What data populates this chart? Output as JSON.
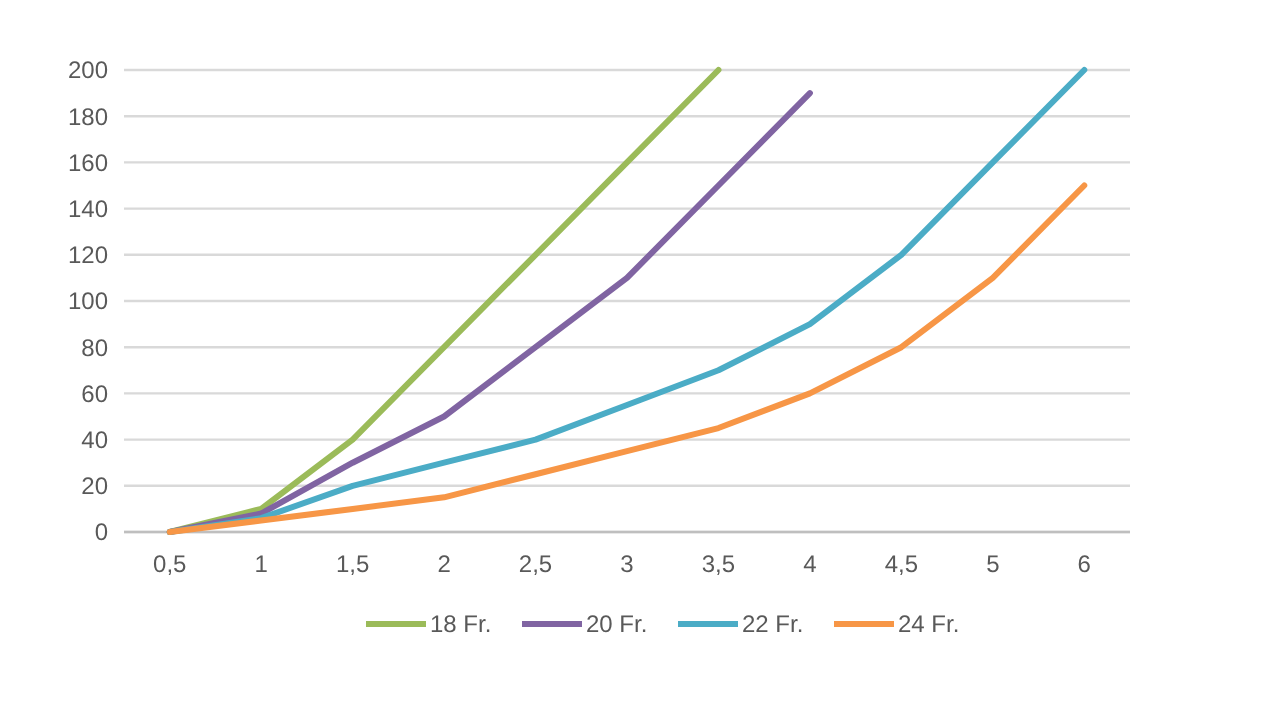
{
  "chart_data": {
    "type": "line",
    "categories": [
      "0,5",
      "1",
      "1,5",
      "2",
      "2,5",
      "3",
      "3,5",
      "4",
      "4,5",
      "5",
      "6"
    ],
    "series": [
      {
        "name": "18 Fr.",
        "color": "#9bbb59",
        "values": [
          0,
          10,
          40,
          80,
          120,
          160,
          200,
          null,
          null,
          null,
          null
        ]
      },
      {
        "name": "20 Fr.",
        "color": "#8064a2",
        "values": [
          0,
          8,
          30,
          50,
          80,
          110,
          150,
          190,
          null,
          null,
          null
        ]
      },
      {
        "name": "22 Fr.",
        "color": "#4bacc6",
        "values": [
          0,
          6,
          20,
          30,
          40,
          55,
          70,
          90,
          120,
          160,
          200
        ]
      },
      {
        "name": "24 Fr.",
        "color": "#f79646",
        "values": [
          0,
          5,
          10,
          15,
          25,
          35,
          45,
          60,
          80,
          110,
          150
        ]
      }
    ],
    "ylim": [
      0,
      200
    ],
    "yticks": [
      0,
      20,
      40,
      60,
      80,
      100,
      120,
      140,
      160,
      180,
      200
    ],
    "grid": "y",
    "legend": "bottom",
    "marker": "none",
    "line_style": "solid"
  }
}
